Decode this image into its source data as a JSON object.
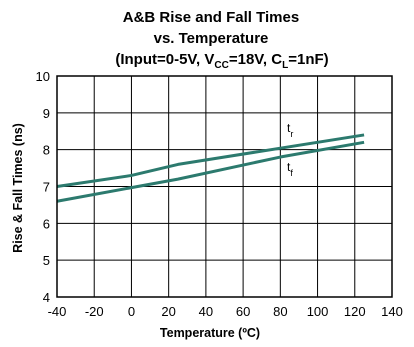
{
  "chart_data": {
    "type": "line",
    "title": {
      "line1": "A&B Rise and Fall Times",
      "line2": "vs. Temperature",
      "line3_prefix": "(Input=0-5V, V",
      "line3_vsub": "CC",
      "line3_mid": "=18V, C",
      "line3_csub": "L",
      "line3_suffix": "=1nF)"
    },
    "xlabel": "Temperature (ºC)",
    "ylabel": "Rise & Fall Times (ns)",
    "xlim": [
      -40,
      140
    ],
    "ylim": [
      4,
      10
    ],
    "xticks": [
      -40,
      -20,
      0,
      20,
      40,
      60,
      80,
      100,
      120,
      140
    ],
    "yticks": [
      4,
      5,
      6,
      7,
      8,
      9,
      10
    ],
    "grid": true,
    "series": [
      {
        "name": "tr",
        "label_main": "t",
        "label_sub": "r",
        "x": [
          -40,
          0,
          25,
          125
        ],
        "y": [
          7.0,
          7.3,
          7.6,
          8.4
        ]
      },
      {
        "name": "tf",
        "label_main": "t",
        "label_sub": "f",
        "x": [
          -40,
          25,
          80,
          125
        ],
        "y": [
          6.6,
          7.2,
          7.8,
          8.2
        ]
      }
    ],
    "colors": {
      "line": "#2c7a6e",
      "grid": "#000000",
      "frame": "#000000"
    }
  }
}
